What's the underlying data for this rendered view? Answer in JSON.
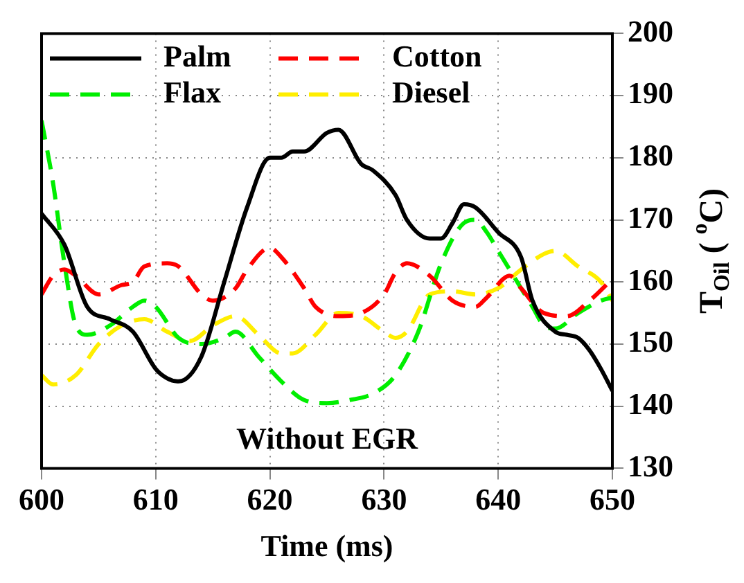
{
  "chart_data": {
    "type": "line",
    "xlabel": "Time (ms)",
    "ylabel": "T$_{Oil}$ ( $^{o}$C)",
    "xlim": [
      600,
      650
    ],
    "xticks": [
      600,
      610,
      620,
      630,
      640,
      650
    ],
    "ylim": [
      130,
      200
    ],
    "yticks": [
      130,
      140,
      150,
      160,
      170,
      180,
      190,
      200
    ],
    "grid": true,
    "legend": "top",
    "marker": "none",
    "annotations": [
      "Without EGR"
    ],
    "series": [
      {
        "name": "Palm",
        "color": "#000000",
        "line_style": "solid",
        "x": [
          600,
          602,
          604,
          606,
          608,
          610,
          611,
          612,
          614,
          616,
          618,
          620,
          621,
          622,
          623,
          625,
          626,
          628,
          629,
          631,
          632,
          634,
          635,
          636,
          637,
          638,
          640,
          642,
          643,
          645,
          646,
          647,
          648,
          649,
          650
        ],
        "values": [
          171,
          166,
          156,
          154,
          152,
          146,
          144.5,
          144,
          148,
          160,
          172,
          180,
          180,
          181,
          181,
          184,
          184.5,
          179,
          178,
          174,
          170,
          167,
          167,
          169.5,
          172.5,
          172,
          168,
          164,
          157,
          152,
          151.5,
          151,
          149,
          146,
          142.5
        ]
      },
      {
        "name": "Cotton",
        "color": "#ff0000",
        "line_style": "dashed",
        "x": [
          600,
          601,
          602,
          603,
          605,
          607,
          608,
          609,
          611,
          612,
          614,
          615,
          617,
          618,
          620,
          621,
          623,
          624,
          626,
          628,
          630,
          631,
          632,
          634,
          636,
          638,
          639,
          641,
          642,
          644,
          646,
          648,
          650
        ],
        "values": [
          158,
          161,
          162,
          161,
          158,
          159.5,
          160,
          162.5,
          163,
          162.5,
          158,
          157,
          159,
          162,
          165.5,
          164,
          159,
          156,
          154.5,
          155,
          158,
          161.5,
          163,
          161,
          157,
          156,
          157.5,
          161,
          159,
          155,
          154.5,
          157,
          160.5
        ]
      },
      {
        "name": "Flax",
        "color": "#00ee00",
        "line_style": "dashed",
        "x": [
          600,
          601,
          602,
          603,
          604,
          606,
          608,
          609,
          610,
          612,
          614,
          616,
          617,
          619,
          621,
          623,
          625,
          627,
          629,
          631,
          633,
          635,
          637,
          638,
          639,
          640,
          642,
          643,
          644,
          645,
          647,
          649,
          650
        ],
        "values": [
          186,
          176,
          163,
          153,
          151.5,
          153,
          156,
          157,
          156,
          151,
          150,
          151,
          152,
          148,
          144,
          141,
          140.5,
          141,
          142,
          145,
          152,
          163,
          169.5,
          170,
          168,
          165,
          159,
          156,
          153,
          152.5,
          155,
          157,
          157.5
        ]
      },
      {
        "name": "Diesel",
        "color": "#ffee00",
        "line_style": "dashed",
        "x": [
          600,
          601,
          603,
          605,
          607,
          609,
          611,
          613,
          615,
          617,
          619,
          621,
          622,
          624,
          626,
          628,
          630,
          631,
          632,
          634,
          636,
          638,
          640,
          642,
          644,
          645,
          647,
          649,
          650
        ],
        "values": [
          145,
          143.5,
          145,
          150,
          153,
          154,
          152,
          150.5,
          153,
          154.5,
          151.5,
          148.5,
          148.5,
          151.5,
          155,
          154.5,
          152,
          151,
          152,
          158,
          158.5,
          158,
          159,
          162,
          164.5,
          165,
          162.5,
          160,
          157
        ]
      }
    ]
  }
}
